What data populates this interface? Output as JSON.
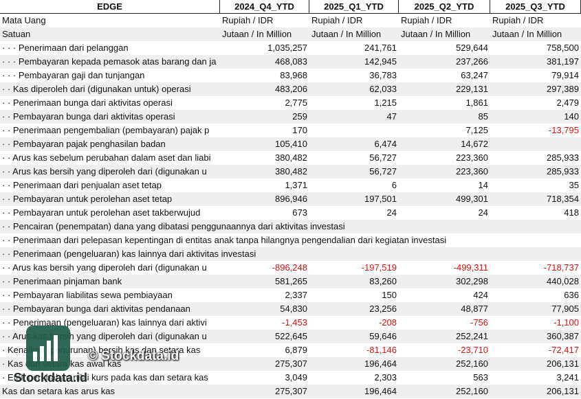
{
  "header": {
    "label": "EDGE",
    "columns": [
      "2024_Q4_YTD",
      "2025_Q1_YTD",
      "2025_Q2_YTD",
      "2025_Q3_YTD"
    ]
  },
  "meta_rows": [
    {
      "label": "Mata Uang",
      "cells": [
        "Rupiah / IDR",
        "Rupiah / IDR",
        "Rupiah / IDR",
        "Rupiah / IDR"
      ]
    },
    {
      "label": "Satuan",
      "cells": [
        "Jutaan / In Million",
        "Jutaan / In Million",
        "Jutaan / In Million",
        "Jutaan / In Million"
      ]
    }
  ],
  "rows": [
    {
      "label": "· · · Penerimaan dari pelanggan",
      "cells": [
        "1,035,257",
        "241,761",
        "529,644",
        "758,500"
      ]
    },
    {
      "label": "· · · Pembayaran kepada pemasok atas barang dan ja",
      "cells": [
        "468,083",
        "142,945",
        "237,266",
        "381,197"
      ]
    },
    {
      "label": "· · · Pembayaran gaji dan tunjangan",
      "cells": [
        "83,968",
        "36,783",
        "63,247",
        "79,914"
      ]
    },
    {
      "label": "· · Kas diperoleh dari (digunakan untuk) operasi",
      "cells": [
        "483,206",
        "62,033",
        "229,131",
        "297,389"
      ]
    },
    {
      "label": "· · Penerimaan bunga dari aktivitas operasi",
      "cells": [
        "2,775",
        "1,215",
        "1,861",
        "2,479"
      ]
    },
    {
      "label": "· · Pembayaran bunga dari aktivitas operasi",
      "cells": [
        "259",
        "47",
        "85",
        "140"
      ]
    },
    {
      "label": "· · Penerimaan pengembalian (pembayaran) pajak p",
      "cells": [
        "170",
        null,
        "7,125",
        "-13,795"
      ]
    },
    {
      "label": "· · Pembayaran pajak penghasilan badan",
      "cells": [
        "105,410",
        "6,474",
        "14,672",
        null
      ]
    },
    {
      "label": "· · Arus kas sebelum perubahan dalam aset dan liabi",
      "cells": [
        "380,482",
        "56,727",
        "223,360",
        "285,933"
      ]
    },
    {
      "label": "· · Arus kas bersih yang diperoleh dari (digunakan u",
      "cells": [
        "380,482",
        "56,727",
        "223,360",
        "285,933"
      ]
    },
    {
      "label": "· · Penerimaan dari penjualan aset tetap",
      "cells": [
        "1,371",
        "6",
        "14",
        "35"
      ]
    },
    {
      "label": "· · Pembayaran untuk perolehan aset tetap",
      "cells": [
        "896,946",
        "197,501",
        "499,301",
        "718,354"
      ]
    },
    {
      "label": "· · Pembayaran untuk perolehan aset takberwujud",
      "cells": [
        "673",
        "24",
        "24",
        "418"
      ]
    },
    {
      "label": "· · Pencairan (penempatan) dana yang dibatasi penggunaannya dari aktivitas investasi",
      "cells": [
        null,
        null,
        null,
        null
      ]
    },
    {
      "label": "· · Penerimaan dari pelepasan kepentingan di entitas anak tanpa hilangnya pengendalian dari kegiatan investasi",
      "cells": [
        null,
        null,
        null,
        null
      ]
    },
    {
      "label": "· · Penerimaan (pengeluaran) kas lainnya dari aktivitas investasi",
      "cells": [
        null,
        null,
        null,
        null
      ]
    },
    {
      "label": "· · Arus kas bersih yang diperoleh dari (digunakan u",
      "cells": [
        "-896,248",
        "-197,519",
        "-499,311",
        "-718,737"
      ]
    },
    {
      "label": "· · Penerimaan pinjaman bank",
      "cells": [
        "581,265",
        "83,260",
        "302,298",
        "440,028"
      ]
    },
    {
      "label": "· · Pembayaran liabilitas sewa pembiayaan",
      "cells": [
        "2,337",
        "150",
        "424",
        "636"
      ]
    },
    {
      "label": "· · Pembayaran bunga dari aktivitas pendanaan",
      "cells": [
        "54,830",
        "23,256",
        "48,877",
        "77,905"
      ]
    },
    {
      "label": "· · Penerimaan (pengeluaran) kas lainnya dari aktivi",
      "cells": [
        "-1,453",
        "-208",
        "-756",
        "-1,100"
      ]
    },
    {
      "label": "· · Arus kas bersih yang diperoleh dari (digunakan u",
      "cells": [
        "522,645",
        "59,646",
        "252,241",
        "360,387"
      ]
    },
    {
      "label": "· Kenaikan (penurunan) bersih kas dan setara kas",
      "cells": [
        "6,879",
        "-81,146",
        "-23,710",
        "-72,417"
      ]
    },
    {
      "label": "· Kas dan setara kas awal kas",
      "cells": [
        "275,307",
        "196,464",
        "252,160",
        "206,131"
      ]
    },
    {
      "label": "· Efek perubahan nilai kurs pada kas dan setara kas",
      "cells": [
        "3,049",
        "2,303",
        "563",
        "3,241"
      ]
    },
    {
      "label": "Kas dan setara kas arus kas",
      "cells": [
        "275,307",
        "196,464",
        "252,160",
        "206,131"
      ]
    }
  ],
  "negative_color": "#e01010",
  "watermark": {
    "caption": "© Stockdata.id",
    "brand": "Stockdata.id"
  }
}
